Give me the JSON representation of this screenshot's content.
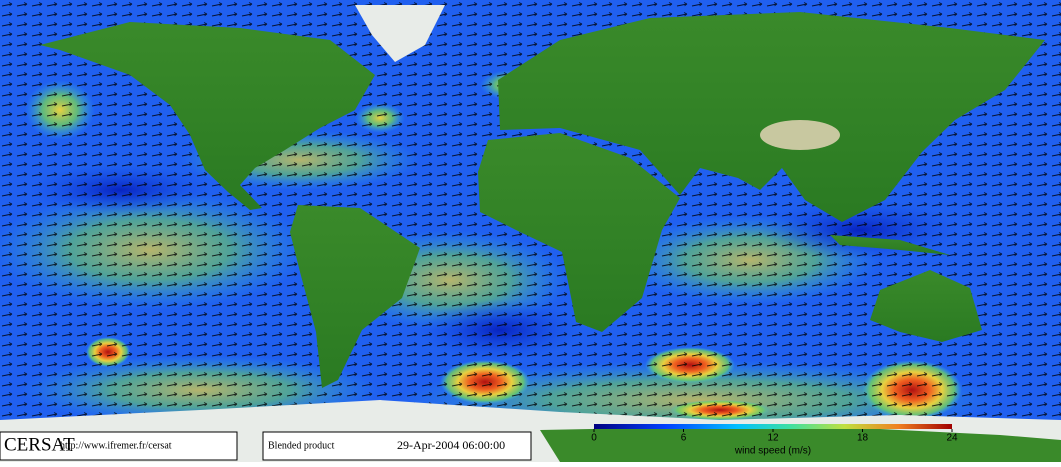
{
  "footer": {
    "logo": "CERSAT",
    "url": "http://www.ifremer.fr/cersat",
    "product": "Blended product",
    "date": "29-Apr-2004 06:00:00"
  },
  "colorbar": {
    "label": "wind speed (m/s)",
    "lim": [
      0,
      24
    ],
    "ticks": [
      0,
      6,
      12,
      18,
      24
    ]
  }
}
